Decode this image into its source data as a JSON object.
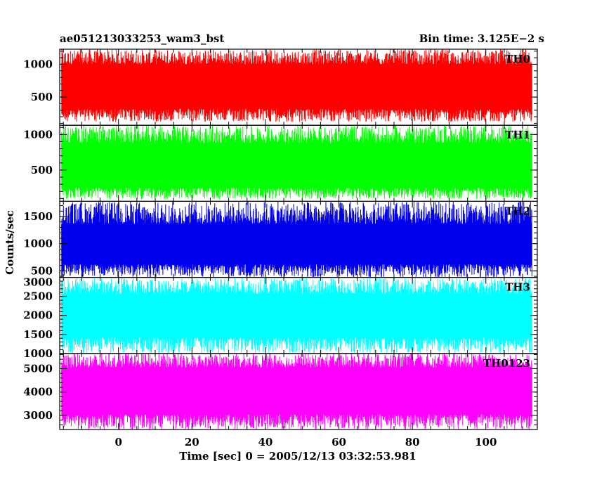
{
  "header": {
    "title": "ae051213033253_wam3_bst",
    "bin_time": "Bin time: 3.125E−2 s"
  },
  "axes": {
    "ylabel": "Counts/sec",
    "xlabel": "Time [sec] 0 = 2005/12/13 03:32:53.981"
  },
  "chart_data": {
    "type": "line",
    "title": "ae051213033253_wam3_bst",
    "subtitle": "Bin time: 3.125E−2 s",
    "xlabel": "Time [sec] 0 = 2005/12/13 03:32:53.981",
    "ylabel": "Counts/sec",
    "xlim": [
      -16,
      114
    ],
    "x_data_range": [
      -15.5,
      112.5
    ],
    "x_ticks": [
      0,
      20,
      40,
      60,
      80,
      100
    ],
    "x_tick_labels": [
      "0",
      "20",
      "40",
      "60",
      "80",
      "100"
    ],
    "grid": false,
    "panels": [
      {
        "name": "TH0",
        "color": "#ff0000",
        "ylim": [
          70,
          1230
        ],
        "y_ticks": [
          500,
          1000
        ],
        "y_tick_labels": [
          "500",
          "1000"
        ],
        "band": [
          320,
          1000
        ],
        "envelope": [
          120,
          1230
        ]
      },
      {
        "name": "TH1",
        "color": "#00ff00",
        "ylim": [
          60,
          1130
        ],
        "y_ticks": [
          500,
          1000
        ],
        "y_tick_labels": [
          "500",
          "1000"
        ],
        "band": [
          250,
          880
        ],
        "envelope": [
          90,
          1130
        ]
      },
      {
        "name": "TH2",
        "color": "#0000ee",
        "ylim": [
          380,
          1780
        ],
        "y_ticks": [
          500,
          1000,
          1500
        ],
        "y_tick_labels": [
          "500",
          "1000",
          "1500"
        ],
        "band": [
          620,
          1360
        ],
        "envelope": [
          380,
          1780
        ]
      },
      {
        "name": "TH3",
        "color": "#00ffff",
        "ylim": [
          1000,
          3000
        ],
        "y_ticks": [
          1000,
          1500,
          2000,
          2500,
          3000
        ],
        "y_tick_labels": [
          "1000",
          "1500",
          "2000",
          "2500",
          "3000"
        ],
        "band": [
          1420,
          2560
        ],
        "envelope": [
          1000,
          3000
        ]
      },
      {
        "name": "TH0123",
        "color": "#ff00ff",
        "ylim": [
          2400,
          5650
        ],
        "y_ticks": [
          3000,
          4000,
          5000
        ],
        "y_tick_labels": [
          "3000",
          "4000",
          "5000"
        ],
        "band": [
          3050,
          5050
        ],
        "envelope": [
          2400,
          5650
        ]
      }
    ]
  }
}
